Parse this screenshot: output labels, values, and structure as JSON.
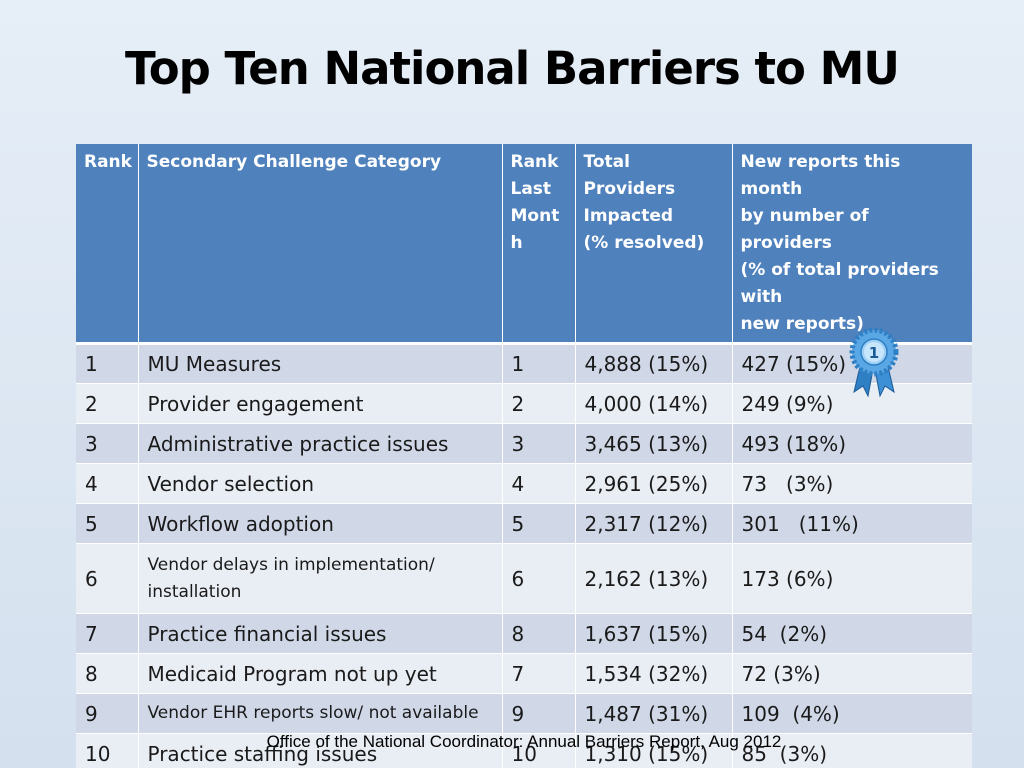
{
  "title": "Top Ten National Barriers to MU",
  "table": {
    "headers": {
      "rank": "Rank",
      "category": "Secondary Challenge Category",
      "rank_last_month": [
        "Rank",
        "Last",
        "Mont",
        "h"
      ],
      "total_providers": [
        "Total Providers",
        "Impacted",
        "(% resolved)"
      ],
      "new_reports": [
        "New reports this month",
        "by number of providers",
        "(% of total providers with",
        "new reports)"
      ]
    },
    "rows": [
      {
        "rank": "1",
        "category": "MU Measures",
        "rank_last_month": "1",
        "total": "4,888  (15%)",
        "new_reports": "427 (15%)"
      },
      {
        "rank": "2",
        "category": "Provider engagement",
        "rank_last_month": "2",
        "total": "4,000 (14%)",
        "new_reports": "249 (9%)"
      },
      {
        "rank": "3",
        "category": "Administrative practice issues",
        "rank_last_month": "3",
        "total": "3,465 (13%)",
        "new_reports": "493 (18%)"
      },
      {
        "rank": "4",
        "category": "Vendor selection",
        "rank_last_month": "4",
        "total": "2,961 (25%)",
        "new_reports": "73   (3%)"
      },
      {
        "rank": "5",
        "category": "Workflow adoption",
        "rank_last_month": "5",
        "total": "2,317 (12%)",
        "new_reports": "301   (11%)"
      },
      {
        "rank": "6",
        "category": [
          "Vendor delays in implementation/",
          "installation"
        ],
        "rank_last_month": "6",
        "total": "2,162 (13%)",
        "new_reports": "173 (6%)"
      },
      {
        "rank": "7",
        "category": "Practice financial issues",
        "rank_last_month": "8",
        "total": "1,637 (15%)",
        "new_reports": "54  (2%)"
      },
      {
        "rank": "8",
        "category": "Medicaid Program not up yet",
        "rank_last_month": "7",
        "total": "1,534 (32%)",
        "new_reports": "72 (3%)"
      },
      {
        "rank": "9",
        "category": "Vendor EHR reports slow/ not available",
        "rank_last_month": "9",
        "total": "1,487 (31%)",
        "new_reports": "109  (4%)"
      },
      {
        "rank": "10",
        "category": "Practice staffing issues",
        "rank_last_month": "10",
        "total": "1,310 (15%)",
        "new_reports": "85  (3%)"
      }
    ]
  },
  "ribbon_badge": {
    "icon": "award-ribbon-icon",
    "label": "1"
  },
  "source": "Office of the National Coordinator: Annual Barriers Report, Aug 2012",
  "colors": {
    "header_bg": "#4f81bd",
    "row_odd": "#d0d8e8",
    "row_even": "#e9edf4"
  }
}
